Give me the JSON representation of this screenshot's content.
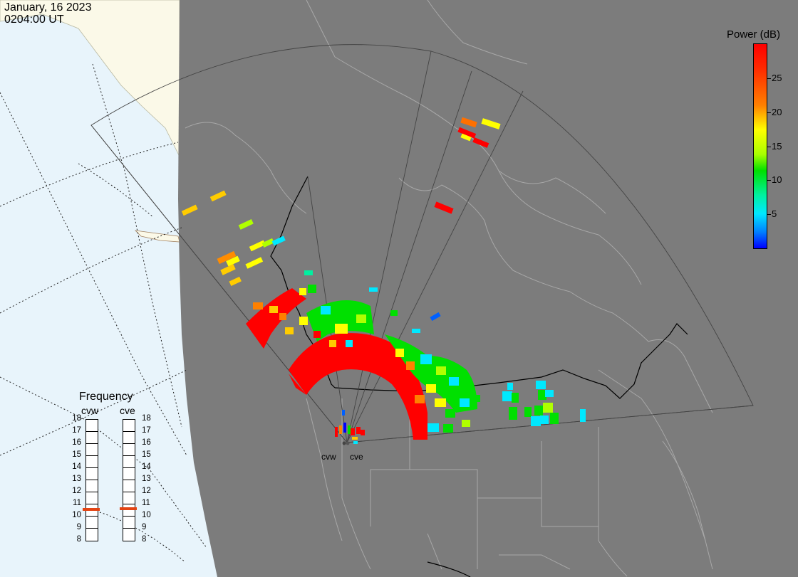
{
  "timestamp": {
    "date": "January, 16 2023",
    "time": "0204:00 UT"
  },
  "colorbar": {
    "title": "Power (dB)",
    "ticks": [
      25,
      20,
      15,
      10,
      5
    ],
    "range": [
      0,
      30
    ],
    "colors": [
      "#0000ff",
      "#0080ff",
      "#00e8ff",
      "#00f0a0",
      "#00e000",
      "#a8ff00",
      "#ffff00",
      "#ff8000",
      "#ff2a00",
      "#ff0000"
    ]
  },
  "frequency_panel": {
    "title": "Frequency",
    "columns": [
      {
        "name": "cvw",
        "selected_mhz": 11
      },
      {
        "name": "cve",
        "selected_mhz": 11
      }
    ],
    "scale": [
      "18",
      "17",
      "16",
      "15",
      "14",
      "13",
      "12",
      "11",
      "10",
      "9",
      "8"
    ],
    "marker_color": "#e34414"
  },
  "radar_sites": [
    "cvw",
    "cve"
  ],
  "colors": {
    "ocean": "#e8f4fb",
    "land_outside": "#fbf9e8",
    "data_region": "#7c7c7c",
    "boundaries": "#a8a8a8"
  }
}
